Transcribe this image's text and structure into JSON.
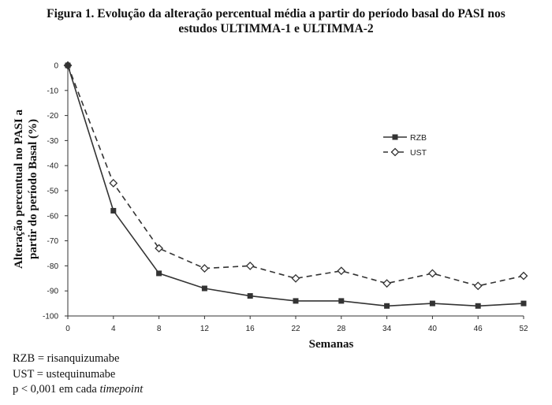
{
  "title": {
    "line1": "Figura 1. Evolução da alteração percentual média a partir do período basal do PASI nos",
    "line2": "estudos ULTIMMA-1 e ULTIMMA-2"
  },
  "chart_data": {
    "type": "line",
    "categories": [
      "0",
      "4",
      "8",
      "12",
      "16",
      "22",
      "28",
      "34",
      "40",
      "46",
      "52"
    ],
    "series": [
      {
        "name": "RZB",
        "values": [
          0,
          -58,
          -83,
          -89,
          -92,
          -94,
          -94,
          -96,
          -95,
          -96,
          -95
        ],
        "line": "solid",
        "marker": "filled-square",
        "color": "#333333"
      },
      {
        "name": "UST",
        "values": [
          0,
          -47,
          -73,
          -81,
          -80,
          -85,
          -82,
          -87,
          -83,
          -88,
          -84
        ],
        "line": "dashed",
        "marker": "open-diamond",
        "color": "#333333"
      }
    ],
    "yticks": [
      "0",
      "-10",
      "-20",
      "-30",
      "-40",
      "-50",
      "-60",
      "-70",
      "-80",
      "-90",
      "-100"
    ],
    "ylim": [
      -100,
      0
    ],
    "xlabel": "Semanas",
    "ylabel_line1": "Alteração percentual no PASI a",
    "ylabel_line2": "partir do período Basal (%)",
    "legend": {
      "placement": "right-middle",
      "labels": [
        "RZB",
        "UST"
      ]
    },
    "grid": false
  },
  "footnotes": {
    "rzb": "RZB = risanquizumabe",
    "ust": "UST = ustequinumabe",
    "p_prefix": "p < 0,001 em cada ",
    "p_italic": "timepoint"
  }
}
